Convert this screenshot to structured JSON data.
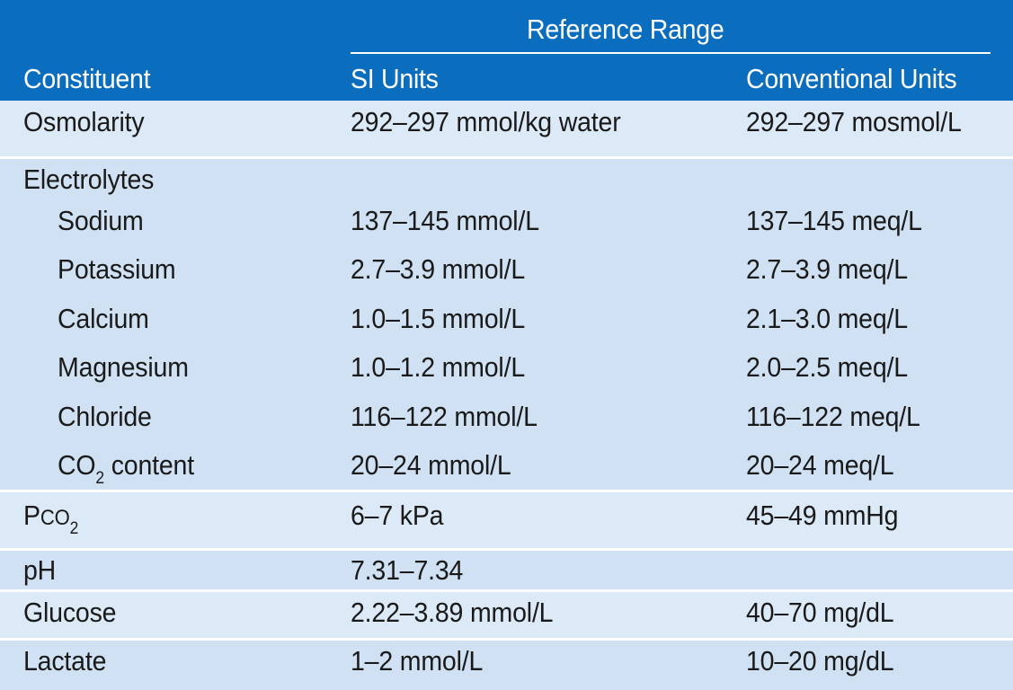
{
  "header": {
    "group_title": "Reference Range",
    "col_constituent": "Constituent",
    "col_si": "SI Units",
    "col_conventional": "Conventional Units"
  },
  "rows": {
    "osmolarity": {
      "name": "Osmolarity",
      "si": "292–297 mmol/kg water",
      "conv": "292–297 mosmol/L"
    },
    "electrolytes": {
      "name": "Electrolytes"
    },
    "sodium": {
      "name": "Sodium",
      "si": "137–145 mmol/L",
      "conv": "137–145 meq/L"
    },
    "potassium": {
      "name": "Potassium",
      "si": "2.7–3.9 mmol/L",
      "conv": "2.7–3.9 meq/L"
    },
    "calcium": {
      "name": "Calcium",
      "si": "1.0–1.5 mmol/L",
      "conv": "2.1–3.0 meq/L"
    },
    "magnesium": {
      "name": "Magnesium",
      "si": "1.0–1.2 mmol/L",
      "conv": "2.0–2.5 meq/L"
    },
    "chloride": {
      "name": "Chloride",
      "si": "116–122 mmol/L",
      "conv": "116–122 meq/L"
    },
    "co2": {
      "name_main": "CO",
      "name_sub": "2",
      "name_tail": " content",
      "si": "20–24 mmol/L",
      "conv": "20–24 meq/L"
    },
    "pco2": {
      "name_p": "P",
      "name_co": "CO",
      "name_sub": "2",
      "si": "6–7 kPa",
      "conv": "45–49 mmHg"
    },
    "ph": {
      "name": "pH",
      "si": "7.31–7.34"
    },
    "glucose": {
      "name": "Glucose",
      "si": "2.22–3.89 mmol/L",
      "conv": "40–70 mg/dL"
    },
    "lactate": {
      "name": "Lactate",
      "si": "1–2 mmol/L",
      "conv": "10–20 mg/dL"
    }
  },
  "colors": {
    "header_bg": "#0b6dbd",
    "row_light": "#dce9f6",
    "row_dark": "#cfe1f2",
    "separator": "#ffffff"
  }
}
